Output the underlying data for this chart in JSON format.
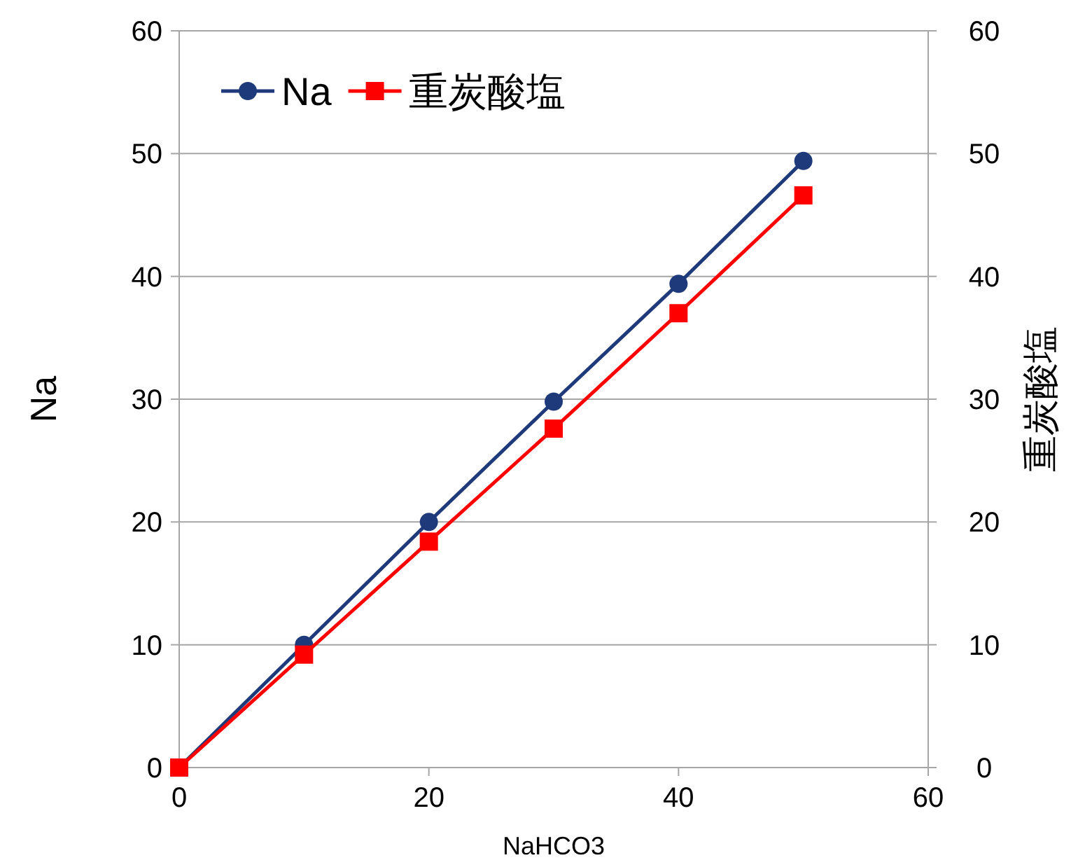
{
  "chart_data": {
    "type": "line",
    "xlabel": "NaHCO3",
    "ylabel": "Na",
    "y2label": "重炭酸塩",
    "x": [
      0,
      10,
      20,
      30,
      40,
      50
    ],
    "series": [
      {
        "name": "Na",
        "color": "#1f3a7a",
        "marker": "circle",
        "values": [
          0,
          10,
          20,
          29.8,
          39.4,
          49.4
        ]
      },
      {
        "name": "重炭酸塩",
        "color": "#ff0000",
        "marker": "square",
        "values": [
          0,
          9.2,
          18.4,
          27.6,
          37,
          46.6
        ]
      }
    ],
    "xlim": [
      0,
      60
    ],
    "xticks": [
      0,
      20,
      40,
      60
    ],
    "ylim": [
      0,
      60
    ],
    "yticks": [
      0,
      10,
      20,
      30,
      40,
      50,
      60
    ],
    "y2lim": [
      0,
      60
    ],
    "y2ticks": [
      0,
      10,
      20,
      30,
      40,
      50,
      60
    ],
    "grid": "y",
    "legend": "top left",
    "line_style": "solid"
  }
}
